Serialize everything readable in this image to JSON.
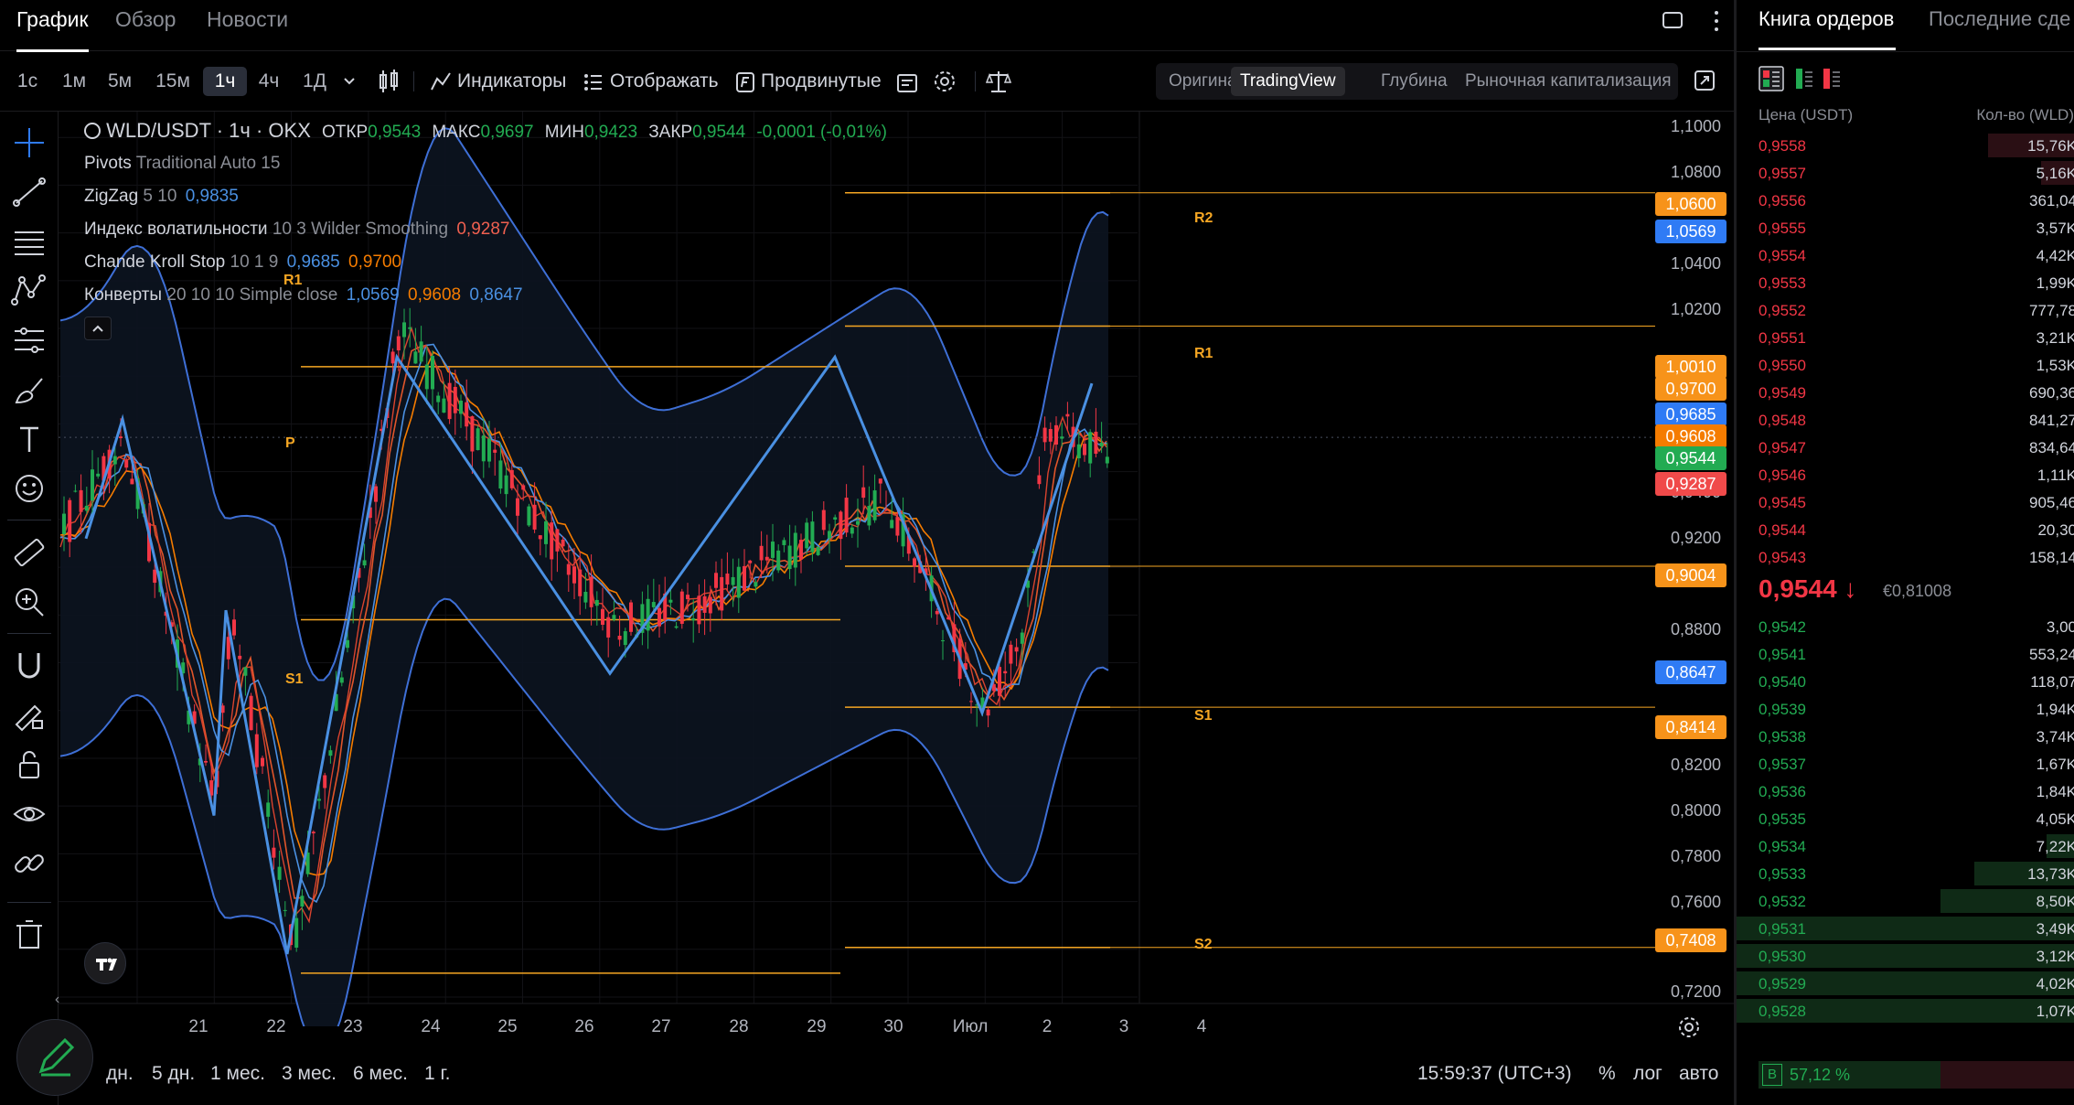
{
  "tabs": [
    "График",
    "Обзор",
    "Новости"
  ],
  "timeframes": [
    "1с",
    "1м",
    "5м",
    "15м",
    "1ч",
    "4ч",
    "1Д"
  ],
  "active_timeframe": "1ч",
  "toolbar": {
    "indicators": "Индикаторы",
    "display": "Отображать",
    "advanced": "Продвинутые"
  },
  "view_modes": [
    "Оригинал",
    "TradingView",
    "Глубина",
    "Рыночная капитализация"
  ],
  "active_view_mode": "TradingView",
  "legend": {
    "symbol": "WLD/USDT · 1ч · OKX",
    "open_label": "ОТКР",
    "open": "0,9543",
    "high_label": "МАКС",
    "high": "0,9697",
    "low_label": "МИН",
    "low": "0,9423",
    "close_label": "ЗАКР",
    "close": "0,9544",
    "change": "-0,0001 (-0,01%)",
    "pivots_name": "Pivots",
    "pivots_params": "Traditional Auto 15",
    "zigzag_name": "ZigZag",
    "zigzag_params": "5 10",
    "zigzag_value": "0,9835",
    "vol_name": "Индекс волатильности",
    "vol_params": "10 3 Wilder Smoothing",
    "vol_value": "0,9287",
    "ck_name": "Chande Kroll Stop",
    "ck_params": "10 1 9",
    "ck_value1": "0,9685",
    "ck_value2": "0,9700",
    "env_name": "Конверты",
    "env_params": "20 10 10 Simple close",
    "env_value1": "1,0569",
    "env_value2": "0,9608",
    "env_value3": "0,8647"
  },
  "price_axis": [
    "1,1000",
    "1,0800",
    "1,0400",
    "1,0200",
    "0,9400",
    "0,9200",
    "0,8800",
    "0,8200",
    "0,8000",
    "0,7800",
    "0,7600",
    "0,7200"
  ],
  "price_tags": [
    {
      "value": "1,0600",
      "color": "#f7931a"
    },
    {
      "value": "1,0569",
      "color": "#2f7bf5"
    },
    {
      "value": "1,0010",
      "color": "#f7931a"
    },
    {
      "value": "0,9700",
      "color": "#f7931a"
    },
    {
      "value": "0,9685",
      "color": "#2f7bf5"
    },
    {
      "value": "0,9608",
      "color": "#f57c00"
    },
    {
      "value": "0,9544",
      "color": "#22ab52"
    },
    {
      "value": "0,9287",
      "color": "#f04a4a"
    },
    {
      "value": "0,9004",
      "color": "#f7931a"
    },
    {
      "value": "0,8647",
      "color": "#2f7bf5"
    },
    {
      "value": "0,8414",
      "color": "#f7931a"
    },
    {
      "value": "0,7408",
      "color": "#f7931a"
    }
  ],
  "pivot_labels": {
    "r2": "R2",
    "r1": "R1",
    "r1_new": "R1",
    "p": "P",
    "s1": "S1",
    "s1_new": "S1",
    "s2": "S2"
  },
  "x_axis": [
    "21",
    "22",
    "23",
    "24",
    "25",
    "26",
    "27",
    "28",
    "29",
    "30",
    "Июл",
    "2",
    "3",
    "4"
  ],
  "bottom": {
    "ranges": [
      "дн.",
      "5 дн.",
      "1 мес.",
      "3 мес.",
      "6 мес.",
      "1 г."
    ],
    "time": "15:59:37 (UTC+3)",
    "percent": "%",
    "log": "лог",
    "auto": "авто"
  },
  "orderbook": {
    "tabs": [
      "Книга ордеров",
      "Последние сде"
    ],
    "price_header": "Цена (USDT)",
    "qty_header": "Кол-во (WLD)",
    "asks": [
      {
        "p": "0,9558",
        "q": "15,76K",
        "depth": 0.42
      },
      {
        "p": "0,9557",
        "q": "5,16K",
        "depth": 0.17
      },
      {
        "p": "0,9556",
        "q": "361,04",
        "depth": 0
      },
      {
        "p": "0,9555",
        "q": "3,57K",
        "depth": 0
      },
      {
        "p": "0,9554",
        "q": "4,42K",
        "depth": 0
      },
      {
        "p": "0,9553",
        "q": "1,99K",
        "depth": 0
      },
      {
        "p": "0,9552",
        "q": "777,78",
        "depth": 0
      },
      {
        "p": "0,9551",
        "q": "3,21K",
        "depth": 0
      },
      {
        "p": "0,9550",
        "q": "1,53K",
        "depth": 0
      },
      {
        "p": "0,9549",
        "q": "690,36",
        "depth": 0
      },
      {
        "p": "0,9548",
        "q": "841,27",
        "depth": 0
      },
      {
        "p": "0,9547",
        "q": "834,64",
        "depth": 0
      },
      {
        "p": "0,9546",
        "q": "1,11K",
        "depth": 0
      },
      {
        "p": "0,9545",
        "q": "905,46",
        "depth": 0
      },
      {
        "p": "0,9544",
        "q": "20,30",
        "depth": 0
      },
      {
        "p": "0,9543",
        "q": "158,14",
        "depth": 0
      }
    ],
    "last_price": "0,9544",
    "last_arrow": "↓",
    "last_fiat": "€0,81008",
    "bids": [
      {
        "p": "0,9542",
        "q": "3,00",
        "depth": 0
      },
      {
        "p": "0,9541",
        "q": "553,24",
        "depth": 0
      },
      {
        "p": "0,9540",
        "q": "118,07",
        "depth": 0
      },
      {
        "p": "0,9539",
        "q": "1,94K",
        "depth": 0
      },
      {
        "p": "0,9538",
        "q": "3,74K",
        "depth": 0
      },
      {
        "p": "0,9537",
        "q": "1,67K",
        "depth": 0
      },
      {
        "p": "0,9536",
        "q": "1,84K",
        "depth": 0
      },
      {
        "p": "0,9535",
        "q": "4,05K",
        "depth": 0
      },
      {
        "p": "0,9534",
        "q": "7,22K",
        "depth": 0.09
      },
      {
        "p": "0,9533",
        "q": "13,73K",
        "depth": 0.3
      },
      {
        "p": "0,9532",
        "q": "8,50K",
        "depth": 0.4
      },
      {
        "p": "0,9531",
        "q": "3,49K",
        "depth": 1.0
      },
      {
        "p": "0,9530",
        "q": "3,12K",
        "depth": 1.0
      },
      {
        "p": "0,9529",
        "q": "4,02K",
        "depth": 1.0
      },
      {
        "p": "0,9528",
        "q": "1,07K",
        "depth": 1.0
      }
    ],
    "ratio_label": "B",
    "ratio_value": "57,12 %",
    "ratio_fraction": 0.5712
  },
  "colors": {
    "ask": "#f23645",
    "bid": "#22ab52",
    "pivot": "#f5a623",
    "zigzag": "#4a90e2",
    "envelope": "#3e6fd6",
    "up": "#22ab52",
    "down": "#f23645"
  }
}
